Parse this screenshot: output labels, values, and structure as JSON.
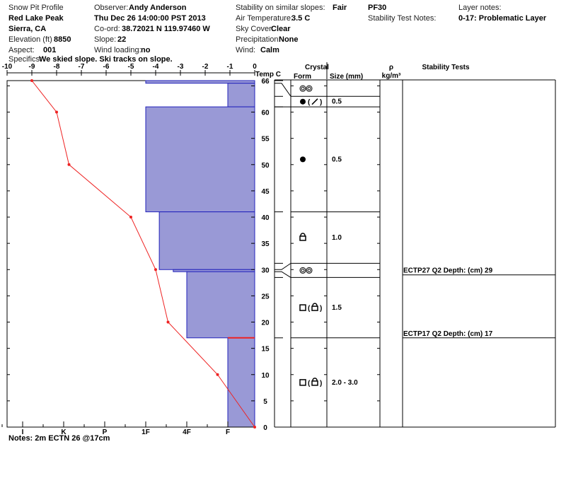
{
  "header": {
    "title": "Snow Pit Profile",
    "location": "Red Lake Peak",
    "region": "Sierra, CA",
    "elevation_label": "Elevation (ft)",
    "elevation": "8850",
    "aspect_label": "Aspect:",
    "aspect": "001",
    "specifics_label": "Specifics:",
    "specifics": "We skied slope. Ski tracks on slope.",
    "observer_label": "Observer:",
    "observer": "Andy Anderson",
    "datetime": "Thu Dec 26 14:00:00 PST 2013",
    "coord_label": "Co-ord:",
    "coord": "38.72021 N 119.97460 W",
    "slope_label": "Slope:",
    "slope": "22",
    "wind_loading_label": "Wind loading:",
    "wind_loading": "no",
    "stability_label": "Stability on similar slopes:",
    "stability": "Fair",
    "air_temp_label": "Air Temperature:",
    "air_temp": "3.5 C",
    "sky_label": "Sky Cover:",
    "sky": "Clear",
    "precip_label": "Precipitation:",
    "precip": "None",
    "wind_label": "Wind:",
    "wind": "Calm",
    "pf": "PF30",
    "stability_notes_label": "Stability Test Notes:",
    "layer_notes_label": "Layer notes:",
    "layer_notes": "0-17: Problematic Layer"
  },
  "notes": "Notes:  2m ECTN 26 @17cm",
  "columns": {
    "temp": "Temp C",
    "crystal": "Crystal",
    "form": "Form",
    "size": "Size (mm)",
    "rho": "ρ",
    "rho_unit": "kg/m³",
    "stability": "Stability Tests"
  },
  "chart_data": {
    "type": "line",
    "temperature": {
      "xlabel": "Temp C",
      "xlim": [
        -10,
        0
      ],
      "ticks": [
        -10,
        -9,
        -8,
        -7,
        -6,
        -5,
        -4,
        -3,
        -2,
        -1,
        0
      ],
      "points": [
        [
          -9,
          66
        ],
        [
          -8,
          60
        ],
        [
          -7.5,
          50
        ],
        [
          -5,
          40
        ],
        [
          -4,
          30
        ],
        [
          -3.5,
          20
        ],
        [
          -1.5,
          10
        ],
        [
          0,
          0
        ]
      ]
    },
    "depth": {
      "ylim": [
        0,
        66
      ],
      "ticks": [
        0,
        5,
        10,
        15,
        20,
        25,
        30,
        35,
        40,
        45,
        50,
        55,
        60,
        65
      ],
      "top_label": "66"
    },
    "hardness": {
      "ticks": [
        "F",
        "4F",
        "1F",
        "P",
        "K",
        "I"
      ],
      "tick_index": [
        1,
        2,
        3,
        4,
        5,
        6
      ]
    },
    "layers": [
      {
        "top": 66,
        "bottom": 65.5,
        "hardness": 3
      },
      {
        "top": 65.5,
        "bottom": 61,
        "hardness": 1
      },
      {
        "top": 61,
        "bottom": 41,
        "hardness": 3
      },
      {
        "top": 41,
        "bottom": 30,
        "hardness": 2.67
      },
      {
        "top": 30,
        "bottom": 29.6,
        "hardness": 2.33
      },
      {
        "top": 29.6,
        "bottom": 17,
        "hardness": 2
      },
      {
        "top": 17,
        "bottom": 0,
        "hardness": 1
      }
    ],
    "crystal_rows": [
      {
        "top": 66,
        "bottom": 63,
        "forms": [
          "rounds-pair"
        ],
        "size": ""
      },
      {
        "top": 63,
        "bottom": 61,
        "forms": [
          "dot",
          "(",
          "slash",
          ")"
        ],
        "size": "0.5"
      },
      {
        "top": 61,
        "bottom": 41,
        "forms": [
          "dot"
        ],
        "size": "0.5"
      },
      {
        "top": 41,
        "bottom": 31.2,
        "forms": [
          "lock"
        ],
        "size": "1.0"
      },
      {
        "top": 31.2,
        "bottom": 28.5,
        "forms": [
          "rounds-pair"
        ],
        "size": ""
      },
      {
        "top": 28.5,
        "bottom": 17,
        "forms": [
          "square",
          "(",
          "lock",
          ")"
        ],
        "size": "1.5"
      },
      {
        "top": 17,
        "bottom": 0,
        "forms": [
          "square",
          "(",
          "lock",
          ")"
        ],
        "size": "2.0 - 3.0"
      }
    ],
    "stability_tests": [
      {
        "label": "ECTP27 Q2 Depth: (cm) 29",
        "depth": 29
      },
      {
        "label": "ECTP17 Q2 Depth: (cm) 17",
        "depth": 17
      }
    ],
    "problem_depth": 17
  },
  "colors": {
    "bar": "#9999d6",
    "bar_edge": "#2222bb",
    "temp_line": "#ee2222"
  }
}
